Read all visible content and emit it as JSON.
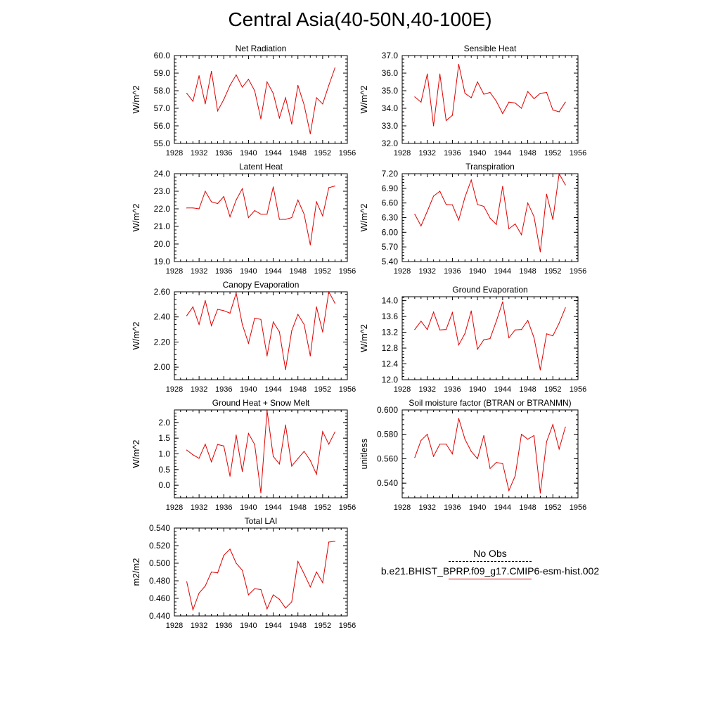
{
  "title": "Central Asia(40-50N,40-100E)",
  "line_color": "#e00000",
  "legend": {
    "obs_label": "No Obs",
    "model_label": "b.e21.BHIST_BPRP.f09_g17.CMIP6-esm-hist.002"
  },
  "chart_data": [
    {
      "type": "line",
      "title": "Net Radiation",
      "ylabel": "W/m^2",
      "xlim": [
        1928,
        1956
      ],
      "ylim": [
        55.0,
        60.0
      ],
      "xticks": [
        "1928",
        "1932",
        "1936",
        "1940",
        "1944",
        "1948",
        "1952",
        "1956"
      ],
      "yticks": [
        "55.0",
        "56.0",
        "57.0",
        "58.0",
        "59.0",
        "60.0"
      ],
      "ytick_values": [
        55,
        56,
        57,
        58,
        59,
        60
      ],
      "series": [
        {
          "x": [
            1930,
            1931,
            1932,
            1933,
            1934,
            1935,
            1936,
            1937,
            1938,
            1939,
            1940,
            1941,
            1942,
            1943,
            1944,
            1945,
            1946,
            1947,
            1948,
            1949,
            1950,
            1951,
            1952,
            1953,
            1954
          ],
          "values": [
            57.85,
            57.4,
            58.85,
            57.25,
            59.1,
            56.85,
            57.5,
            58.3,
            58.9,
            58.2,
            58.65,
            58.0,
            56.4,
            58.5,
            57.85,
            56.45,
            57.6,
            56.1,
            58.3,
            57.2,
            55.55,
            57.6,
            57.25,
            58.3,
            59.3
          ]
        }
      ]
    },
    {
      "type": "line",
      "title": "Sensible Heat",
      "ylabel": "W/m^2",
      "xlim": [
        1928,
        1956
      ],
      "ylim": [
        32.0,
        37.0
      ],
      "xticks": [
        "1928",
        "1932",
        "1936",
        "1940",
        "1944",
        "1948",
        "1952",
        "1956"
      ],
      "yticks": [
        "32.0",
        "33.0",
        "34.0",
        "35.0",
        "36.0",
        "37.0"
      ],
      "ytick_values": [
        32,
        33,
        34,
        35,
        36,
        37
      ],
      "series": [
        {
          "x": [
            1930,
            1931,
            1932,
            1933,
            1934,
            1935,
            1936,
            1937,
            1938,
            1939,
            1940,
            1941,
            1942,
            1943,
            1944,
            1945,
            1946,
            1947,
            1948,
            1949,
            1950,
            1951,
            1952,
            1953,
            1954
          ],
          "values": [
            34.65,
            34.35,
            35.95,
            33.0,
            35.95,
            33.3,
            33.6,
            36.5,
            34.85,
            34.6,
            35.5,
            34.8,
            34.9,
            34.4,
            33.7,
            34.35,
            34.3,
            34.0,
            34.95,
            34.55,
            34.85,
            34.9,
            33.9,
            33.8,
            34.35
          ]
        }
      ]
    },
    {
      "type": "line",
      "title": "Latent Heat",
      "ylabel": "W/m^2",
      "xlim": [
        1928,
        1956
      ],
      "ylim": [
        19.0,
        24.0
      ],
      "xticks": [
        "1928",
        "1932",
        "1936",
        "1940",
        "1944",
        "1948",
        "1952",
        "1956"
      ],
      "yticks": [
        "19.0",
        "20.0",
        "21.0",
        "22.0",
        "23.0",
        "24.0"
      ],
      "ytick_values": [
        19,
        20,
        21,
        22,
        23,
        24
      ],
      "series": [
        {
          "x": [
            1930,
            1931,
            1932,
            1933,
            1934,
            1935,
            1936,
            1937,
            1938,
            1939,
            1940,
            1941,
            1942,
            1943,
            1944,
            1945,
            1946,
            1947,
            1948,
            1949,
            1950,
            1951,
            1952,
            1953,
            1954
          ],
          "values": [
            22.05,
            22.05,
            22.0,
            23.0,
            22.4,
            22.3,
            22.7,
            21.55,
            22.5,
            23.15,
            21.5,
            21.9,
            21.7,
            21.7,
            23.25,
            21.4,
            21.4,
            21.5,
            22.5,
            21.7,
            19.95,
            22.4,
            21.6,
            23.2,
            23.3
          ]
        }
      ]
    },
    {
      "type": "line",
      "title": "Transpiration",
      "ylabel": "W/m^2",
      "xlim": [
        1928,
        1956
      ],
      "ylim": [
        5.4,
        7.2
      ],
      "xticks": [
        "1928",
        "1932",
        "1936",
        "1940",
        "1944",
        "1948",
        "1952",
        "1956"
      ],
      "yticks": [
        "5.40",
        "5.70",
        "6.00",
        "6.30",
        "6.60",
        "6.90",
        "7.20"
      ],
      "ytick_values": [
        5.4,
        5.7,
        6.0,
        6.3,
        6.6,
        6.9,
        7.2
      ],
      "series": [
        {
          "x": [
            1930,
            1931,
            1932,
            1933,
            1934,
            1935,
            1936,
            1937,
            1938,
            1939,
            1940,
            1941,
            1942,
            1943,
            1944,
            1945,
            1946,
            1947,
            1948,
            1949,
            1950,
            1951,
            1952,
            1953,
            1954
          ],
          "values": [
            6.37,
            6.13,
            6.43,
            6.74,
            6.84,
            6.57,
            6.56,
            6.25,
            6.72,
            7.07,
            6.57,
            6.53,
            6.29,
            6.16,
            6.94,
            6.07,
            6.17,
            5.95,
            6.6,
            6.32,
            5.6,
            6.78,
            6.26,
            7.2,
            6.97
          ]
        }
      ]
    },
    {
      "type": "line",
      "title": "Canopy Evaporation",
      "ylabel": "W/m^2",
      "xlim": [
        1928,
        1956
      ],
      "ylim": [
        1.9,
        2.6
      ],
      "xticks": [
        "1928",
        "1932",
        "1936",
        "1940",
        "1944",
        "1948",
        "1952",
        "1956"
      ],
      "yticks": [
        "2.00",
        "2.20",
        "2.40",
        "2.60"
      ],
      "ytick_values": [
        2.0,
        2.2,
        2.4,
        2.6
      ],
      "series": [
        {
          "x": [
            1930,
            1931,
            1932,
            1933,
            1934,
            1935,
            1936,
            1937,
            1938,
            1939,
            1940,
            1941,
            1942,
            1943,
            1944,
            1945,
            1946,
            1947,
            1948,
            1949,
            1950,
            1951,
            1952,
            1953,
            1954
          ],
          "values": [
            2.41,
            2.48,
            2.34,
            2.53,
            2.33,
            2.46,
            2.45,
            2.43,
            2.59,
            2.34,
            2.19,
            2.39,
            2.38,
            2.09,
            2.36,
            2.28,
            1.98,
            2.29,
            2.42,
            2.34,
            2.09,
            2.48,
            2.28,
            2.6,
            2.51
          ]
        }
      ]
    },
    {
      "type": "line",
      "title": "Ground Evaporation",
      "ylabel": "W/m^2",
      "xlim": [
        1928,
        1956
      ],
      "ylim": [
        12.0,
        14.1
      ],
      "xticks": [
        "1928",
        "1932",
        "1936",
        "1940",
        "1944",
        "1948",
        "1952",
        "1956"
      ],
      "yticks": [
        "12.0",
        "12.4",
        "12.8",
        "13.2",
        "13.6",
        "14.0"
      ],
      "ytick_values": [
        12.0,
        12.4,
        12.8,
        13.2,
        13.6,
        14.0
      ],
      "series": [
        {
          "x": [
            1930,
            1931,
            1932,
            1933,
            1934,
            1935,
            1936,
            1937,
            1938,
            1939,
            1940,
            1941,
            1942,
            1943,
            1944,
            1945,
            1946,
            1947,
            1948,
            1949,
            1950,
            1951,
            1952,
            1953,
            1954
          ],
          "values": [
            13.27,
            13.48,
            13.27,
            13.71,
            13.26,
            13.27,
            13.7,
            12.88,
            13.17,
            13.74,
            12.77,
            13.01,
            13.04,
            13.48,
            13.97,
            13.06,
            13.26,
            13.27,
            13.5,
            13.06,
            12.25,
            13.16,
            13.11,
            13.43,
            13.82
          ]
        }
      ]
    },
    {
      "type": "line",
      "title": "Ground Heat + Snow Melt",
      "ylabel": "W/m^2",
      "xlim": [
        1928,
        1956
      ],
      "ylim": [
        -0.4,
        2.4
      ],
      "xticks": [
        "1928",
        "1932",
        "1936",
        "1940",
        "1944",
        "1948",
        "1952",
        "1956"
      ],
      "yticks": [
        "0.0",
        "0.5",
        "1.0",
        "1.5",
        "2.0"
      ],
      "ytick_values": [
        0.0,
        0.5,
        1.0,
        1.5,
        2.0
      ],
      "series": [
        {
          "x": [
            1930,
            1931,
            1932,
            1933,
            1934,
            1935,
            1936,
            1937,
            1938,
            1939,
            1940,
            1941,
            1942,
            1943,
            1944,
            1945,
            1946,
            1947,
            1948,
            1949,
            1950,
            1951,
            1952,
            1953,
            1954
          ],
          "values": [
            1.12,
            0.97,
            0.86,
            1.31,
            0.75,
            1.3,
            1.25,
            0.29,
            1.6,
            0.44,
            1.65,
            1.3,
            -0.24,
            2.38,
            0.92,
            0.68,
            1.92,
            0.61,
            0.85,
            1.08,
            0.79,
            0.35,
            1.71,
            1.31,
            1.7
          ]
        }
      ]
    },
    {
      "type": "line",
      "title": "Soil moisture factor (BTRAN or BTRANMN)",
      "ylabel": "unitless",
      "xlim": [
        1928,
        1956
      ],
      "ylim": [
        0.528,
        0.6
      ],
      "xticks": [
        "1928",
        "1932",
        "1936",
        "1940",
        "1944",
        "1948",
        "1952",
        "1956"
      ],
      "yticks": [
        "0.540",
        "0.560",
        "0.580",
        "0.600"
      ],
      "ytick_values": [
        0.54,
        0.56,
        0.58,
        0.6
      ],
      "series": [
        {
          "x": [
            1930,
            1931,
            1932,
            1933,
            1934,
            1935,
            1936,
            1937,
            1938,
            1939,
            1940,
            1941,
            1942,
            1943,
            1944,
            1945,
            1946,
            1947,
            1948,
            1949,
            1950,
            1951,
            1952,
            1953,
            1954
          ],
          "values": [
            0.561,
            0.575,
            0.58,
            0.562,
            0.572,
            0.572,
            0.564,
            0.593,
            0.576,
            0.566,
            0.56,
            0.579,
            0.552,
            0.557,
            0.556,
            0.534,
            0.546,
            0.58,
            0.576,
            0.579,
            0.532,
            0.574,
            0.588,
            0.568,
            0.586
          ]
        }
      ]
    },
    {
      "type": "line",
      "title": "Total LAI",
      "ylabel": "m2/m2",
      "xlim": [
        1928,
        1956
      ],
      "ylim": [
        0.44,
        0.54
      ],
      "xticks": [
        "1928",
        "1932",
        "1936",
        "1940",
        "1944",
        "1948",
        "1952",
        "1956"
      ],
      "yticks": [
        "0.440",
        "0.460",
        "0.480",
        "0.500",
        "0.520",
        "0.540"
      ],
      "ytick_values": [
        0.44,
        0.46,
        0.48,
        0.5,
        0.52,
        0.54
      ],
      "series": [
        {
          "x": [
            1930,
            1931,
            1932,
            1933,
            1934,
            1935,
            1936,
            1937,
            1938,
            1939,
            1940,
            1941,
            1942,
            1943,
            1944,
            1945,
            1946,
            1947,
            1948,
            1949,
            1950,
            1951,
            1952,
            1953,
            1954
          ],
          "values": [
            0.479,
            0.447,
            0.466,
            0.474,
            0.49,
            0.489,
            0.509,
            0.516,
            0.5,
            0.492,
            0.464,
            0.471,
            0.47,
            0.448,
            0.464,
            0.459,
            0.449,
            0.456,
            0.502,
            0.488,
            0.473,
            0.49,
            0.478,
            0.524,
            0.525
          ]
        }
      ]
    }
  ]
}
